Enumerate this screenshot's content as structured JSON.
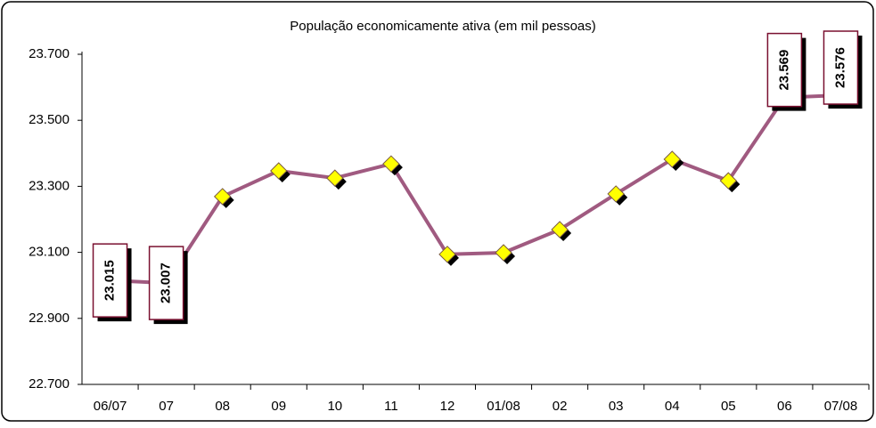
{
  "chart_data": {
    "type": "line",
    "title": "População economicamente ativa (em mil  pessoas)",
    "categories": [
      "06/07",
      "07",
      "08",
      "09",
      "10",
      "11",
      "12",
      "01/08",
      "02",
      "03",
      "04",
      "05",
      "06",
      "07/08"
    ],
    "series": [
      {
        "color": "#a05a80",
        "values": [
          23015,
          23007,
          23269,
          23347,
          23325,
          23368,
          23094,
          23099,
          23169,
          23277,
          23382,
          23317,
          23569,
          23576
        ],
        "value_labels": [
          "23.015",
          "23.007",
          null,
          null,
          null,
          null,
          null,
          null,
          null,
          null,
          null,
          null,
          "23.569",
          "23.576"
        ]
      }
    ],
    "ylim": [
      22700,
      23700
    ],
    "yticks": [
      {
        "value": 22700,
        "label": "22.700"
      },
      {
        "value": 22900,
        "label": "22.900"
      },
      {
        "value": 23100,
        "label": "23.100"
      },
      {
        "value": 23300,
        "label": "23.300"
      },
      {
        "value": 23500,
        "label": "23.500"
      },
      {
        "value": 23700,
        "label": "23.700"
      }
    ]
  }
}
